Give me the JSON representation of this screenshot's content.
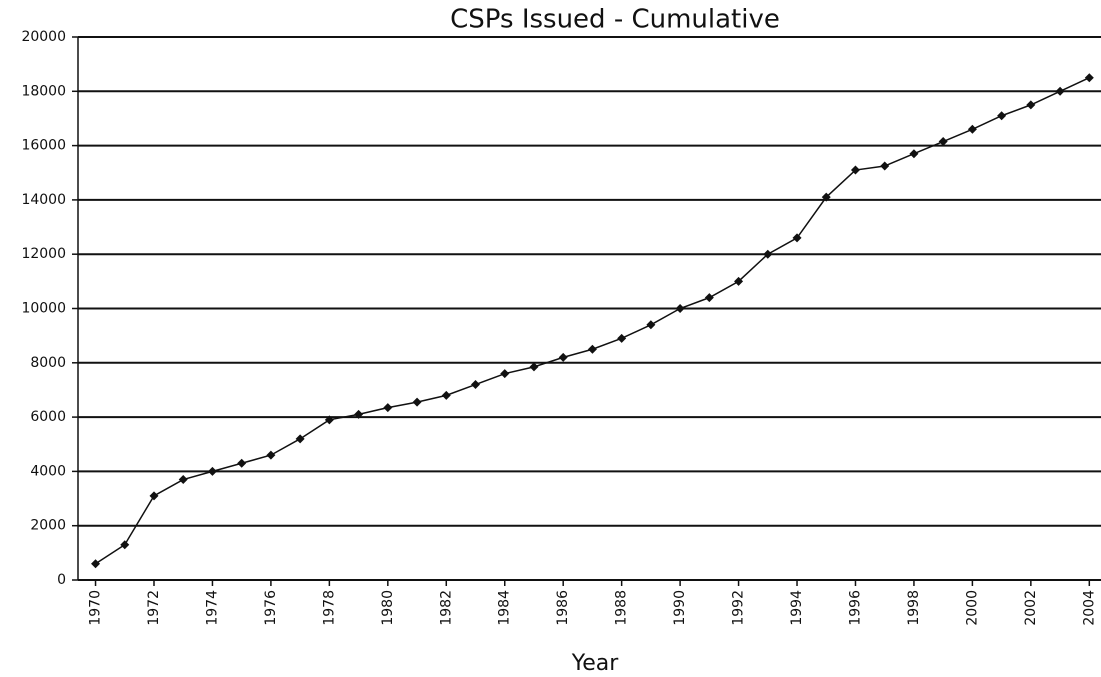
{
  "chart_data": {
    "type": "line",
    "title": "CSPs Issued - Cumulative",
    "x_label": "Year",
    "x": [
      1970,
      1971,
      1972,
      1973,
      1974,
      1975,
      1976,
      1977,
      1978,
      1979,
      1980,
      1981,
      1982,
      1983,
      1984,
      1985,
      1986,
      1987,
      1988,
      1989,
      1990,
      1991,
      1992,
      1993,
      1994,
      1995,
      1996,
      1997,
      1998,
      1999,
      2000,
      2001,
      2002,
      2003,
      2004
    ],
    "series": [
      {
        "name": "CSPs Issued",
        "color": "#111111",
        "values": [
          600,
          1300,
          3100,
          3700,
          4000,
          4300,
          4600,
          5200,
          5900,
          6100,
          6350,
          6550,
          6800,
          7200,
          7600,
          7850,
          8200,
          8500,
          8900,
          9400,
          10000,
          10400,
          11000,
          12000,
          12600,
          14100,
          15100,
          15250,
          15700,
          16150,
          16600,
          17100,
          17500,
          18000,
          18500
        ]
      }
    ],
    "xlim": [
      1969.4,
      2004.4
    ],
    "xticks": [
      1970,
      1972,
      1974,
      1976,
      1978,
      1980,
      1982,
      1984,
      1986,
      1988,
      1990,
      1992,
      1994,
      1996,
      1998,
      2000,
      2002,
      2004
    ],
    "ylim": [
      0,
      20000
    ],
    "yticks": [
      0,
      2000,
      4000,
      6000,
      8000,
      10000,
      12000,
      14000,
      16000,
      18000,
      20000
    ],
    "grid": true
  }
}
